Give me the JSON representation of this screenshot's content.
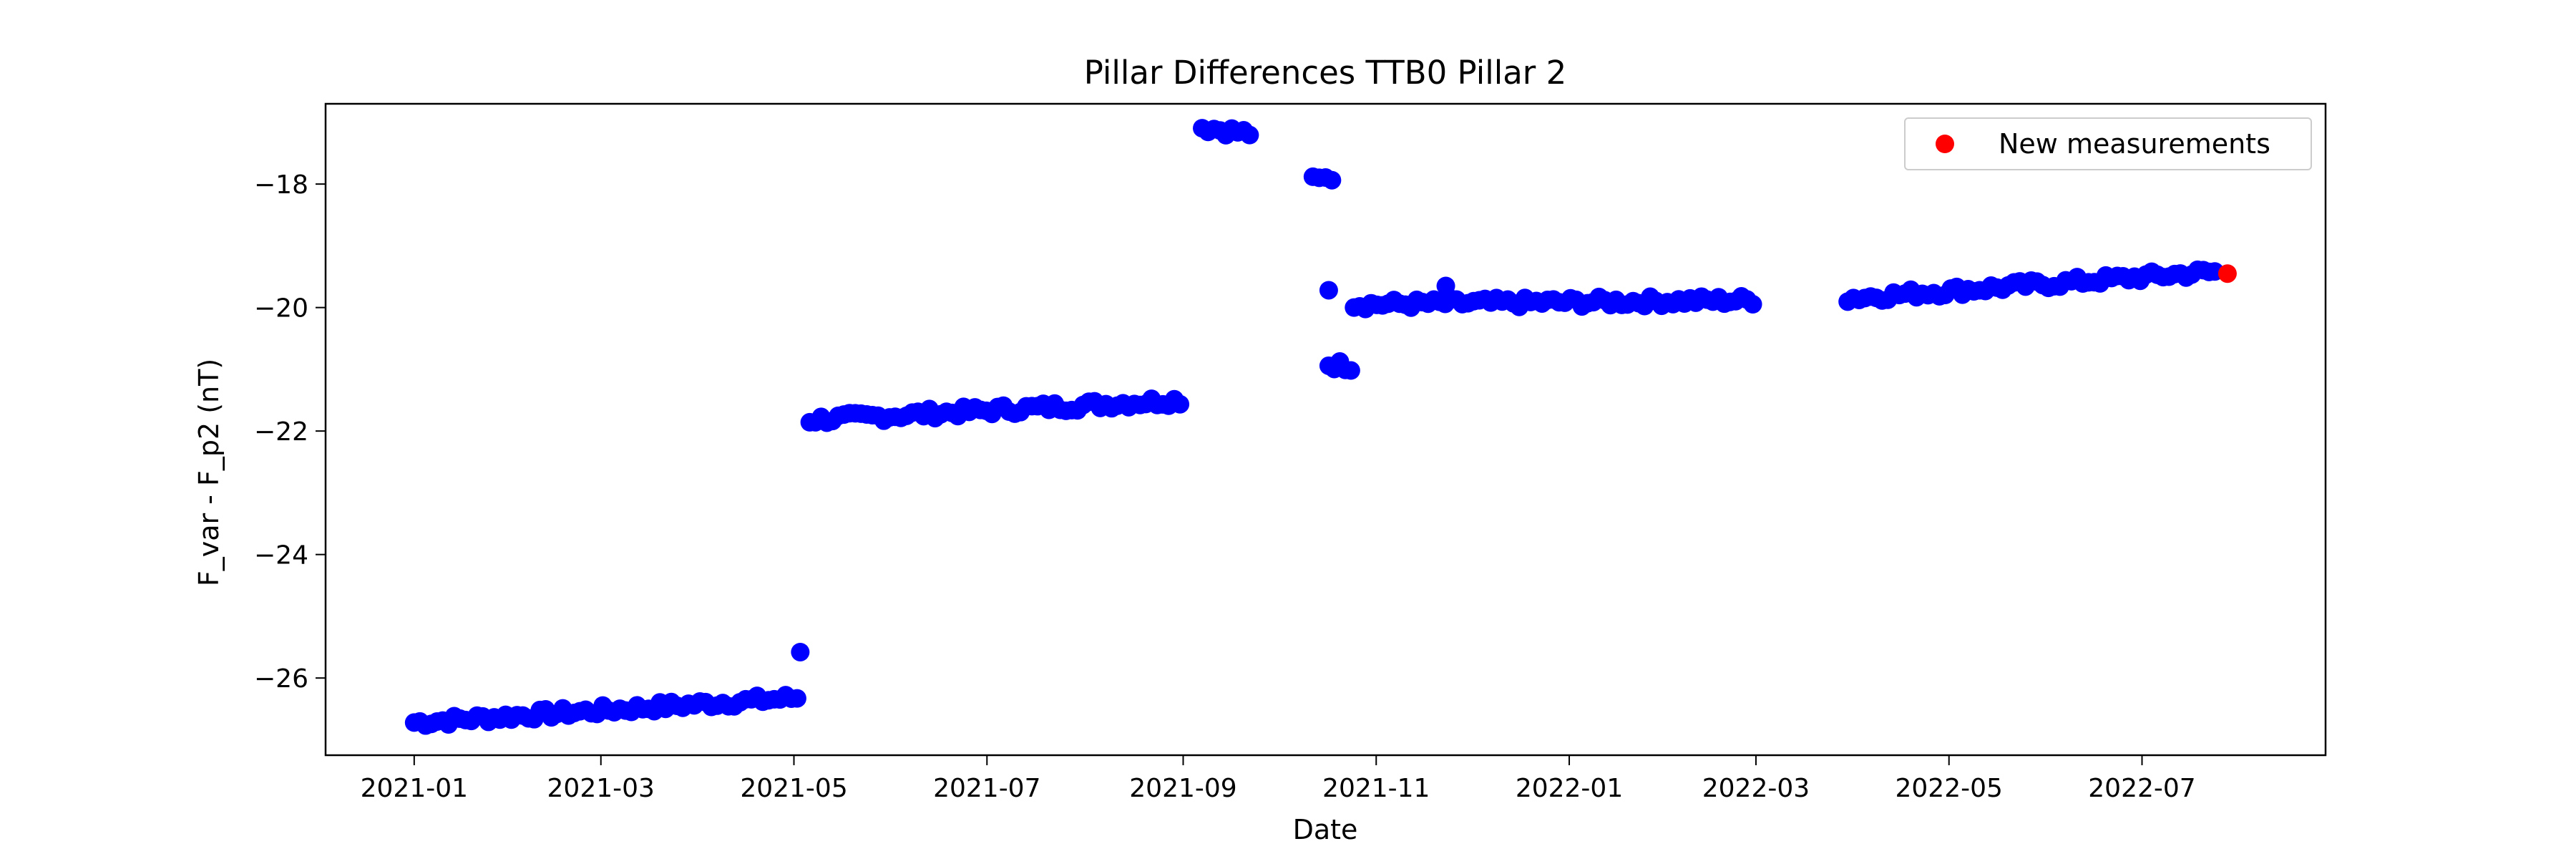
{
  "chart_data": {
    "type": "scatter",
    "title": "Pillar Differences TTB0 Pillar 2",
    "xlabel": "Date",
    "ylabel": "F_var - F_p2 (nT)",
    "xlim": [
      "2020-12-04",
      "2022-08-28"
    ],
    "ylim": [
      -27.25,
      -16.7
    ],
    "x_ticks": [
      "2021-01",
      "2021-03",
      "2021-05",
      "2021-07",
      "2021-09",
      "2021-11",
      "2022-01",
      "2022-03",
      "2022-05",
      "2022-07"
    ],
    "y_ticks": [
      -26,
      -24,
      -22,
      -20,
      -18
    ],
    "grid": false,
    "legend": {
      "position": "top-right",
      "entries": [
        "New measurements"
      ]
    },
    "colors": {
      "history": "#0000ff",
      "new": "#ff0000",
      "axes": "#000000"
    },
    "segments": [
      {
        "start": "2021-01-01",
        "end": "2021-05-02",
        "y_start": -26.72,
        "y_end": -26.32
      },
      {
        "start": "2021-05-06",
        "end": "2021-08-31",
        "y_start": -21.82,
        "y_end": -21.5
      },
      {
        "start": "2021-09-07",
        "end": "2021-09-22",
        "y_start": -17.08,
        "y_end": -17.18
      },
      {
        "start": "2021-10-12",
        "end": "2021-10-18",
        "y_start": -17.95,
        "y_end": -17.9
      },
      {
        "start": "2021-10-17",
        "end": "2021-10-24",
        "y_start": -20.92,
        "y_end": -20.95
      },
      {
        "start": "2021-10-25",
        "end": "2022-02-28",
        "y_start": -19.95,
        "y_end": -19.88
      },
      {
        "start": "2022-03-30",
        "end": "2022-07-24",
        "y_start": -19.85,
        "y_end": -19.42
      }
    ],
    "series": [
      {
        "name": "history",
        "points": [
          {
            "x": "2021-05-03",
            "y": -25.58
          },
          {
            "x": "2021-10-17",
            "y": -19.72
          },
          {
            "x": "2021-11-23",
            "y": -19.65
          }
        ]
      },
      {
        "name": "New measurements",
        "points": [
          {
            "x": "2022-07-28",
            "y": -19.45
          }
        ]
      }
    ]
  }
}
